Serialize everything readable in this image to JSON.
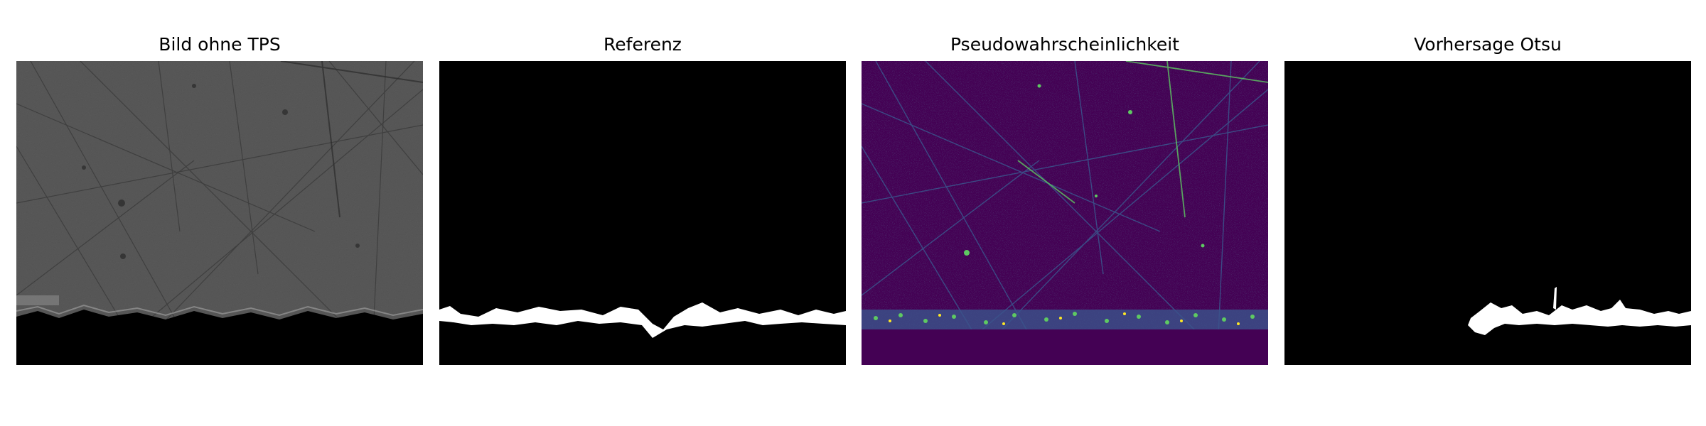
{
  "panels": [
    {
      "title": "Bild ohne TPS",
      "image": "grayscale-micrograph"
    },
    {
      "title": "Referenz",
      "image": "binary-reference-mask"
    },
    {
      "title": "Pseudowahrscheinlichkeit",
      "image": "viridis-probability-map"
    },
    {
      "title": "Vorhersage Otsu",
      "image": "binary-otsu-prediction-mask"
    }
  ],
  "colors": {
    "background": "#ffffff",
    "mask_background": "#000000",
    "mask_foreground": "#ffffff",
    "viridis_low": "#440154",
    "viridis_mid": "#21918c",
    "viridis_high": "#fde725",
    "micrograph_gray": "#5a5a5a"
  }
}
